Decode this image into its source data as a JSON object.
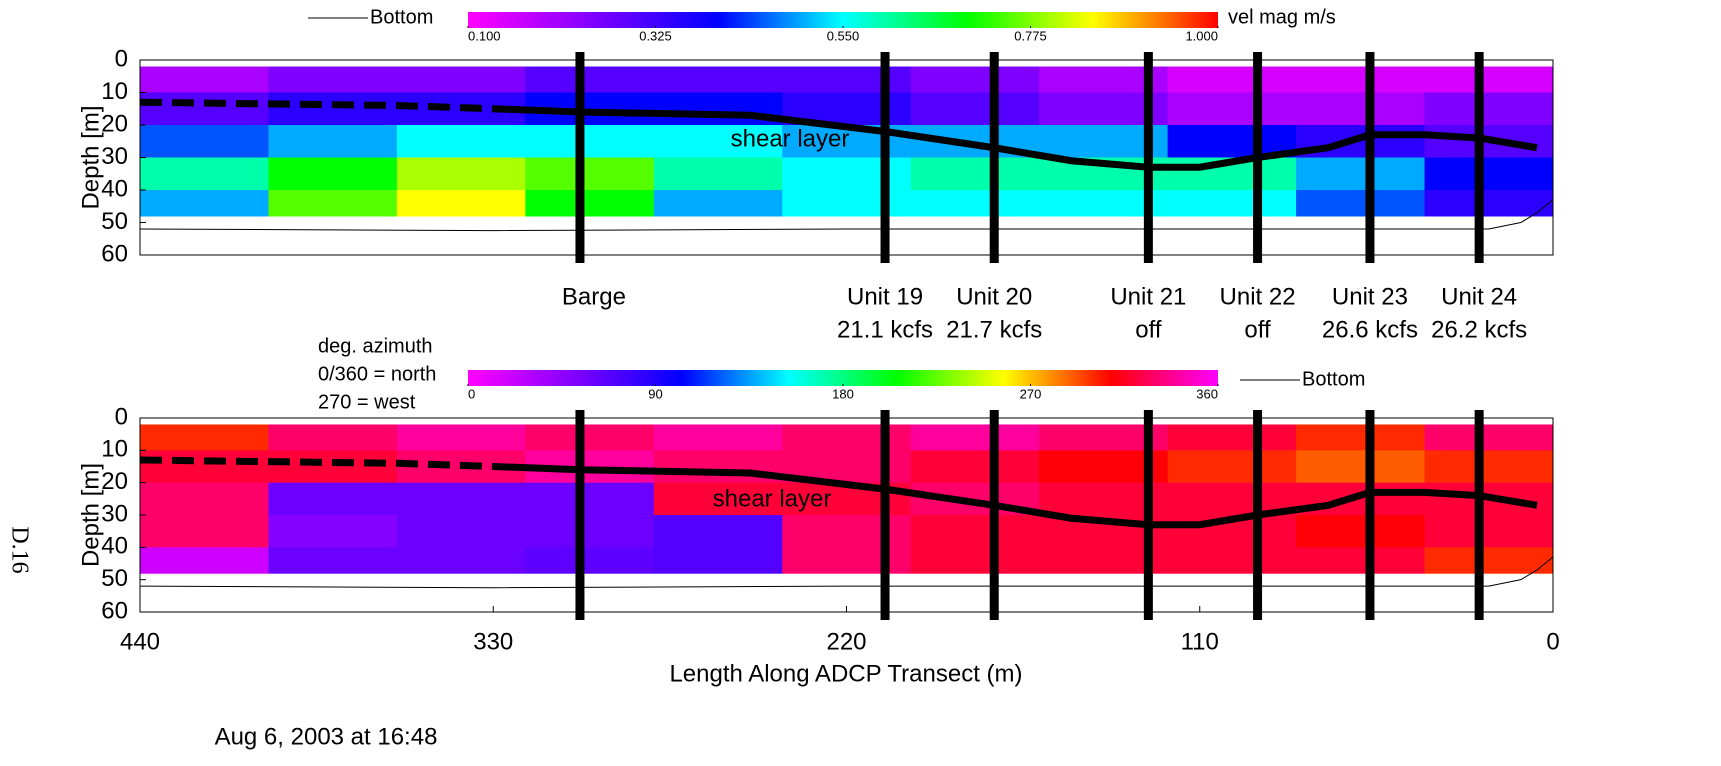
{
  "page_label": "D.16",
  "date": "Aug 6, 2003 at 16:48",
  "stations": [
    {
      "x": 303,
      "label": "Barge"
    },
    {
      "x": 208,
      "label": "Unit 19",
      "flow": "21.1 kcfs"
    },
    {
      "x": 174,
      "label": "Unit 20",
      "flow": "21.7 kcfs"
    },
    {
      "x": 126,
      "label": "Unit 21",
      "flow": "off"
    },
    {
      "x": 92,
      "label": "Unit 22",
      "flow": "off"
    },
    {
      "x": 57,
      "label": "Unit 23",
      "flow": "26.6 kcfs"
    },
    {
      "x": 23,
      "label": "Unit 24",
      "flow": "26.2 kcfs"
    }
  ],
  "chart_data": [
    {
      "type": "heatmap",
      "ylabel": "Depth [m]",
      "xlim": [
        440,
        0
      ],
      "ylim": [
        0,
        60
      ],
      "y_inverted": true,
      "yticks": [
        0,
        10,
        20,
        30,
        40,
        50,
        60
      ],
      "x_edges": [
        440,
        400,
        360,
        320,
        280,
        240,
        200,
        160,
        120,
        80,
        40,
        0
      ],
      "depth_edges": [
        2,
        10,
        20,
        30,
        40,
        48
      ],
      "values": [
        [
          0.2,
          0.25,
          0.25,
          0.3,
          0.3,
          0.3,
          0.25,
          0.2,
          0.15,
          0.15,
          0.15
        ],
        [
          0.3,
          0.35,
          0.35,
          0.4,
          0.4,
          0.35,
          0.3,
          0.25,
          0.2,
          0.2,
          0.25
        ],
        [
          0.45,
          0.5,
          0.55,
          0.55,
          0.55,
          0.5,
          0.5,
          0.5,
          0.4,
          0.35,
          0.3
        ],
        [
          0.6,
          0.7,
          0.8,
          0.75,
          0.6,
          0.55,
          0.6,
          0.6,
          0.6,
          0.5,
          0.4
        ],
        [
          0.5,
          0.75,
          0.85,
          0.7,
          0.5,
          0.55,
          0.55,
          0.55,
          0.55,
          0.45,
          0.35
        ]
      ],
      "colorbar": {
        "title": [
          "vel mag m/s"
        ],
        "lim": [
          0.1,
          1.0
        ],
        "ticks": [
          {
            "value": 0.1,
            "label": "0.100"
          },
          0.325,
          {
            "value": 0.55,
            "label": "0.550"
          },
          0.775,
          {
            "value": 1.0,
            "label": "1.000"
          }
        ],
        "colors": [
          "#ff00ff",
          "#8000ff",
          "#0000ff",
          "#00ffff",
          "#00ff00",
          "#ffff00",
          "#ff0000"
        ]
      },
      "series": [
        {
          "style": "dashed",
          "color": "#000000",
          "x": [
            440,
            400,
            360,
            330
          ],
          "values": [
            13,
            13.5,
            14,
            15
          ]
        },
        {
          "name": "shear layer",
          "style": "thick",
          "color": "#000000",
          "x": [
            330,
            303,
            250,
            208,
            174,
            150,
            126,
            110,
            92,
            70,
            57,
            40,
            23,
            5
          ],
          "values": [
            15,
            16,
            17,
            22,
            27,
            31,
            33,
            33,
            30,
            27,
            23,
            23,
            24,
            27
          ]
        },
        {
          "name": "Bottom",
          "style": "thin",
          "color": "#000000",
          "x": [
            440,
            330,
            220,
            110,
            20,
            10,
            5,
            0
          ],
          "values": [
            52,
            52.5,
            52,
            52,
            52,
            50,
            47,
            43
          ]
        }
      ]
    },
    {
      "type": "heatmap",
      "ylabel": "Depth [m]",
      "xlabel": "Length Along ADCP Transect (m)",
      "xlim": [
        440,
        0
      ],
      "xticks": [
        440,
        330,
        220,
        110,
        0
      ],
      "ylim": [
        0,
        60
      ],
      "y_inverted": true,
      "yticks": [
        0,
        10,
        20,
        30,
        40,
        50,
        60
      ],
      "x_edges": [
        440,
        400,
        360,
        320,
        280,
        240,
        200,
        160,
        120,
        80,
        40,
        0
      ],
      "depth_edges": [
        2,
        10,
        20,
        30,
        40,
        48
      ],
      "values": [
        [
          300,
          330,
          340,
          330,
          340,
          330,
          340,
          330,
          320,
          300,
          330
        ],
        [
          320,
          320,
          330,
          340,
          330,
          330,
          320,
          310,
          300,
          290,
          300
        ],
        [
          330,
          60,
          60,
          60,
          320,
          320,
          330,
          320,
          320,
          320,
          320
        ],
        [
          330,
          50,
          60,
          60,
          70,
          330,
          320,
          320,
          320,
          310,
          320
        ],
        [
          20,
          60,
          60,
          65,
          70,
          330,
          320,
          320,
          320,
          320,
          300
        ]
      ],
      "colorbar": {
        "title": [
          "deg. azimuth",
          "0/360 = north",
          "270 = west"
        ],
        "lim": [
          0,
          360
        ],
        "ticks": [
          0,
          90,
          180,
          270,
          360
        ],
        "colors": [
          "#ff00ff",
          "#8000ff",
          "#0000ff",
          "#00ffff",
          "#00ff00",
          "#ffff00",
          "#ff0000",
          "#ff00ff"
        ]
      },
      "series": [
        {
          "style": "dashed",
          "color": "#000000",
          "x": [
            440,
            400,
            360,
            330
          ],
          "values": [
            13,
            13.5,
            14,
            15
          ]
        },
        {
          "name": "shear layer",
          "style": "thick",
          "color": "#000000",
          "x": [
            330,
            303,
            250,
            208,
            174,
            150,
            126,
            110,
            92,
            70,
            57,
            40,
            23,
            5
          ],
          "values": [
            15,
            16,
            17,
            22,
            27,
            31,
            33,
            33,
            30,
            27,
            23,
            23,
            24,
            27
          ]
        },
        {
          "name": "Bottom",
          "style": "thin",
          "color": "#000000",
          "x": [
            440,
            330,
            220,
            110,
            20,
            10,
            5,
            0
          ],
          "values": [
            52,
            52.5,
            52,
            52,
            52,
            50,
            47,
            43
          ]
        }
      ]
    }
  ]
}
